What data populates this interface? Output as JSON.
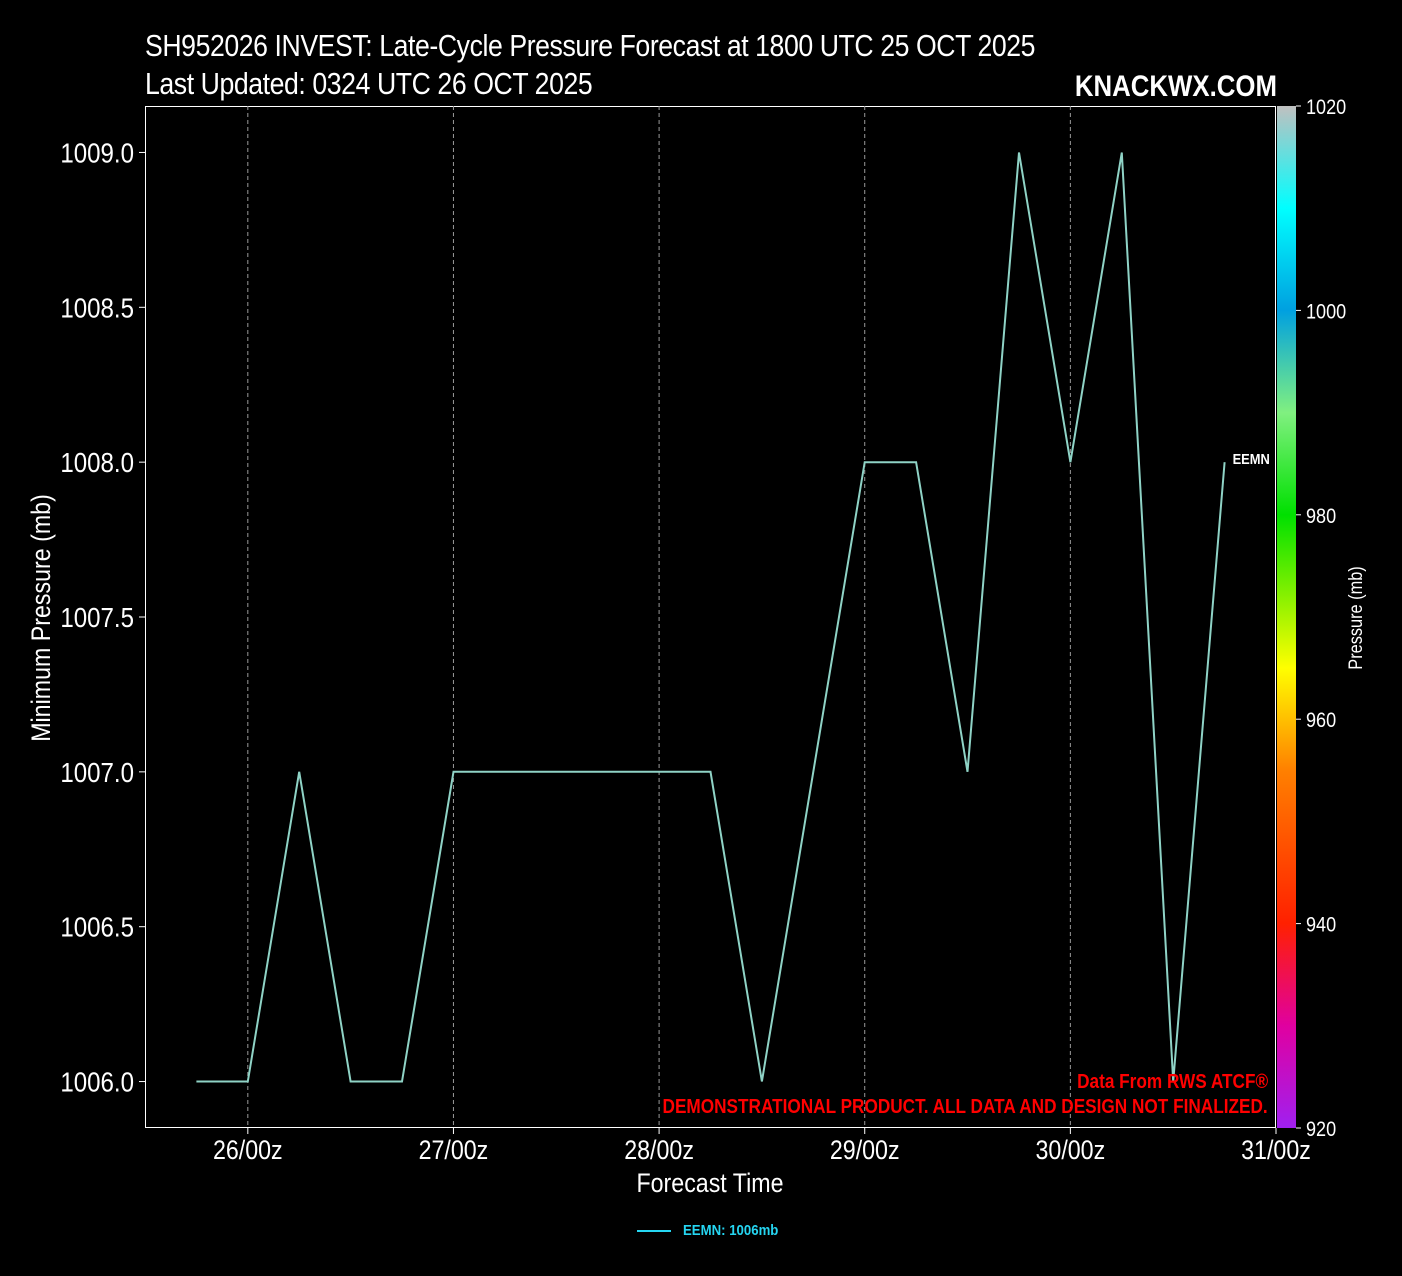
{
  "header": {
    "title_line1": "SH952026 INVEST: Late-Cycle Pressure Forecast at 1800 UTC 25 OCT 2025",
    "title_line2": "Last Updated: 0324 UTC 26 OCT 2025",
    "brand": "KNACKWX.COM"
  },
  "footer": {
    "source_line1": "Data From RWS ATCF®",
    "source_line2": "DEMONSTRATIONAL PRODUCT. ALL DATA AND DESIGN NOT FINALIZED.",
    "source_color": "#ff0000"
  },
  "legend": {
    "label": "EEMN: 1006mb",
    "color": "#25d6f2"
  },
  "chart_data": {
    "type": "line",
    "xlabel": "Forecast Time",
    "ylabel": "Minimum Pressure (mb)",
    "x_ticks": [
      "26/00z",
      "27/00z",
      "28/00z",
      "29/00z",
      "30/00z",
      "31/00z"
    ],
    "x_tick_hours": [
      0,
      24,
      48,
      72,
      96,
      120
    ],
    "xlim_hours": [
      -12,
      120
    ],
    "ylim": [
      1005.85,
      1009.15
    ],
    "y_ticks": [
      "1006.0",
      "1006.5",
      "1007.0",
      "1007.5",
      "1008.0",
      "1008.5",
      "1009.0"
    ],
    "y_tick_values": [
      1006.0,
      1006.5,
      1007.0,
      1007.5,
      1008.0,
      1008.5,
      1009.0
    ],
    "x_grid": true,
    "series": [
      {
        "name": "EEMN",
        "color": "#8fd3c6",
        "end_label": "EEMN",
        "x_hours": [
          -6,
          0,
          6,
          12,
          18,
          24,
          30,
          36,
          42,
          48,
          54,
          60,
          66,
          72,
          78,
          84,
          90,
          96,
          102,
          108,
          114
        ],
        "values": [
          1006,
          1006,
          1007,
          1006,
          1006,
          1007,
          1007,
          1007,
          1007,
          1007,
          1007,
          1006,
          1007,
          1008,
          1008,
          1007,
          1009,
          1008,
          1009,
          1006,
          1008
        ]
      }
    ],
    "colorbar": {
      "label": "Pressure (mb)",
      "range": [
        920,
        1020
      ],
      "ticks": [
        "920",
        "940",
        "960",
        "980",
        "1000",
        "1020"
      ],
      "tick_values": [
        920,
        940,
        960,
        980,
        1000,
        1020
      ],
      "stops": [
        {
          "v": 920,
          "c": "#a020f0"
        },
        {
          "v": 930,
          "c": "#e000a0"
        },
        {
          "v": 940,
          "c": "#ff2000"
        },
        {
          "v": 955,
          "c": "#ff8000"
        },
        {
          "v": 965,
          "c": "#ffff00"
        },
        {
          "v": 980,
          "c": "#00e000"
        },
        {
          "v": 990,
          "c": "#80f080"
        },
        {
          "v": 1000,
          "c": "#00a0e0"
        },
        {
          "v": 1010,
          "c": "#00ffff"
        },
        {
          "v": 1020,
          "c": "#c0c0c0"
        }
      ]
    }
  }
}
